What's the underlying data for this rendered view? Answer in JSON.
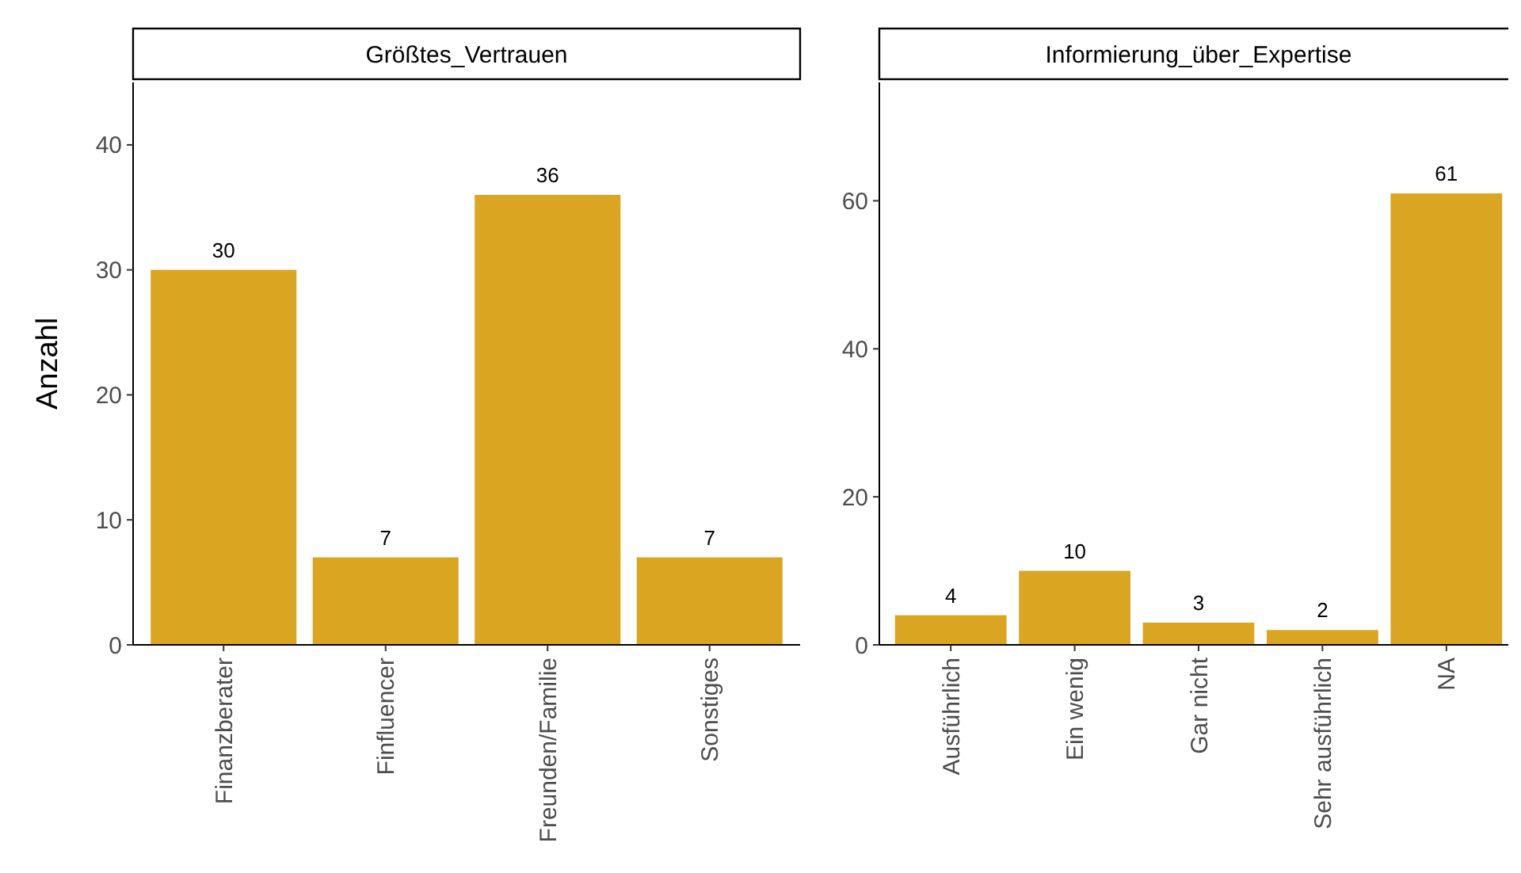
{
  "chart_data": [
    {
      "type": "bar",
      "title": "Größtes_Vertrauen",
      "ylabel": "Anzahl",
      "categories": [
        "Finanzberater",
        "Finfluencer",
        "Freunden/Familie",
        "Sonstiges"
      ],
      "values": [
        30,
        7,
        36,
        7
      ],
      "color": "#daa520",
      "ylim": [
        0,
        45
      ],
      "yticks": [
        0,
        10,
        20,
        30,
        40
      ],
      "data_labels": true
    },
    {
      "type": "bar",
      "title": "Informierung_über_Expertise",
      "categories": [
        "Ausführlich",
        "Ein wenig",
        "Gar nicht",
        "Sehr ausführlich",
        "NA"
      ],
      "values": [
        4,
        10,
        3,
        2,
        61
      ],
      "color": "#daa520",
      "ylim": [
        0,
        76
      ],
      "yticks": [
        0,
        20,
        40,
        60
      ],
      "data_labels": true
    }
  ]
}
